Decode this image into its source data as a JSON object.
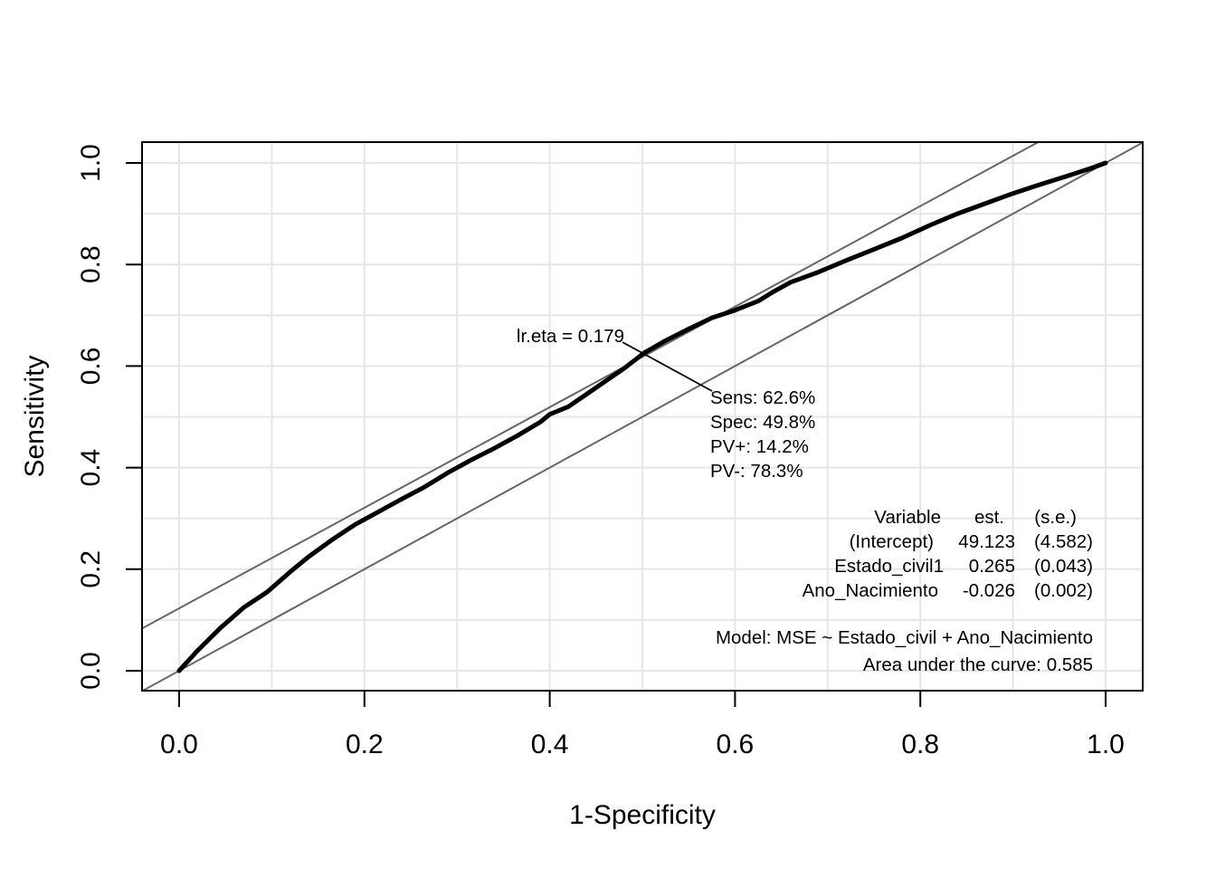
{
  "chart_data": {
    "type": "line",
    "title": "",
    "xlabel": "1-Specificity",
    "ylabel": "Sensitivity",
    "xlim": [
      0,
      1
    ],
    "ylim": [
      0,
      1
    ],
    "grid": true,
    "x_ticks": [
      "0.0",
      "0.2",
      "0.4",
      "0.6",
      "0.8",
      "1.0"
    ],
    "y_ticks": [
      "0.0",
      "0.2",
      "0.4",
      "0.6",
      "0.8",
      "1.0"
    ],
    "reference_lines": [
      {
        "type": "diagonal",
        "intercept": 0,
        "slope": 1
      },
      {
        "type": "tangent",
        "intercept": 0.123,
        "slope": 0.99
      }
    ],
    "series": [
      {
        "x": [
          0.0,
          0.02,
          0.045,
          0.07,
          0.095,
          0.12,
          0.14,
          0.165,
          0.19,
          0.215,
          0.24,
          0.265,
          0.29,
          0.315,
          0.34,
          0.365,
          0.39,
          0.4,
          0.42,
          0.44,
          0.46,
          0.48,
          0.502,
          0.525,
          0.55,
          0.575,
          0.6,
          0.625,
          0.64,
          0.66,
          0.69,
          0.72,
          0.75,
          0.78,
          0.81,
          0.84,
          0.87,
          0.9,
          0.93,
          0.96,
          0.985,
          1.0
        ],
        "y": [
          0.0,
          0.04,
          0.085,
          0.125,
          0.155,
          0.195,
          0.225,
          0.258,
          0.288,
          0.313,
          0.338,
          0.362,
          0.39,
          0.415,
          0.438,
          0.463,
          0.49,
          0.505,
          0.52,
          0.545,
          0.57,
          0.595,
          0.626,
          0.65,
          0.673,
          0.695,
          0.71,
          0.728,
          0.745,
          0.765,
          0.785,
          0.808,
          0.83,
          0.852,
          0.877,
          0.9,
          0.92,
          0.94,
          0.958,
          0.975,
          0.99,
          1.0
        ]
      }
    ],
    "cutpoint": {
      "label": "lr.eta = 0.179",
      "x": 0.502,
      "y": 0.626,
      "stats": [
        "Sens: 62.6%",
        "Spec: 49.8%",
        "PV+: 14.2%",
        "PV-: 78.3%"
      ]
    },
    "coef_table": {
      "headers": [
        "Variable",
        "est.",
        "(s.e.)"
      ],
      "rows": [
        [
          "(Intercept)",
          "49.123",
          "(4.582)"
        ],
        [
          "Estado_civil1",
          "0.265",
          "(0.043)"
        ],
        [
          "Ano_Nacimiento",
          "-0.026",
          "(0.002)"
        ]
      ]
    },
    "model_text": "Model:  MSE ~ Estado_civil + Ano_Nacimiento",
    "auc_text": "Area under the curve: 0.585"
  }
}
